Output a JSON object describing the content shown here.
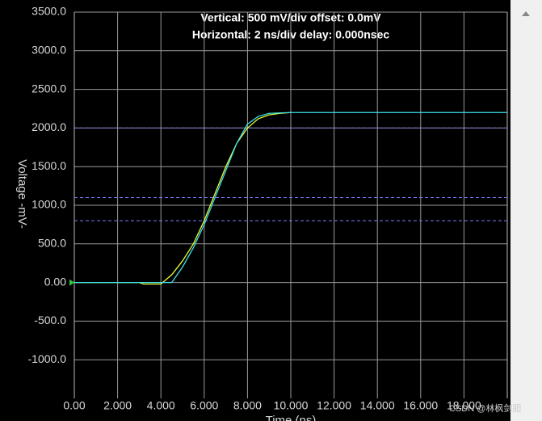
{
  "chart_data": {
    "type": "line",
    "title": "Vertical: 500 mV/div  offset: 0.0mV",
    "subtitle": "Horizontal: 2 ns/div  delay: 0.000nsec",
    "y_label": "Voltage  -mV-",
    "x_label": "Time  (ns)",
    "watermark": "CSDN @林枫剑胆",
    "xlim": [
      0,
      20
    ],
    "ylim": [
      -1500,
      3500
    ],
    "xticks": [
      {
        "value": 0,
        "label": "0.00"
      },
      {
        "value": 2,
        "label": "2.000"
      },
      {
        "value": 4,
        "label": "4.000"
      },
      {
        "value": 6,
        "label": "6.000"
      },
      {
        "value": 8,
        "label": "8.000"
      },
      {
        "value": 10,
        "label": "10.000"
      },
      {
        "value": 12,
        "label": "12.000"
      },
      {
        "value": 14,
        "label": "14.000"
      },
      {
        "value": 16,
        "label": "16.000"
      },
      {
        "value": 18,
        "label": "18.000"
      }
    ],
    "yticks": [
      {
        "value": -1000,
        "label": "-1000.0"
      },
      {
        "value": -500,
        "label": "-500.0"
      },
      {
        "value": 0,
        "label": "0.00"
      },
      {
        "value": 500,
        "label": "500.0"
      },
      {
        "value": 1000,
        "label": "1000.0"
      },
      {
        "value": 1500,
        "label": "1500.0"
      },
      {
        "value": 2000,
        "label": "2000.0"
      },
      {
        "value": 2500,
        "label": "2500.0"
      },
      {
        "value": 3000,
        "label": "3000.0"
      },
      {
        "value": 3500,
        "label": "3500.0"
      }
    ],
    "grid": true,
    "reference_lines": [
      2000,
      1100,
      800
    ],
    "reference_color": "#7b7bff",
    "series": [
      {
        "color": "#e8ff3a",
        "x": [
          0,
          3,
          3.2,
          4,
          4.5,
          5,
          5.5,
          6,
          6.5,
          7,
          7.5,
          8,
          8.5,
          9,
          9.5,
          10
        ],
        "values": [
          0,
          0,
          -20,
          -20,
          100,
          280,
          500,
          800,
          1150,
          1500,
          1800,
          2000,
          2120,
          2170,
          2190,
          2200
        ]
      },
      {
        "color": "#3ee0e8",
        "x": [
          0,
          4.5,
          5,
          5.5,
          6,
          6.5,
          7,
          7.5,
          8,
          8.5,
          9,
          10,
          20
        ],
        "values": [
          0,
          0,
          200,
          450,
          750,
          1100,
          1450,
          1800,
          2050,
          2150,
          2190,
          2200,
          2200
        ]
      }
    ]
  }
}
